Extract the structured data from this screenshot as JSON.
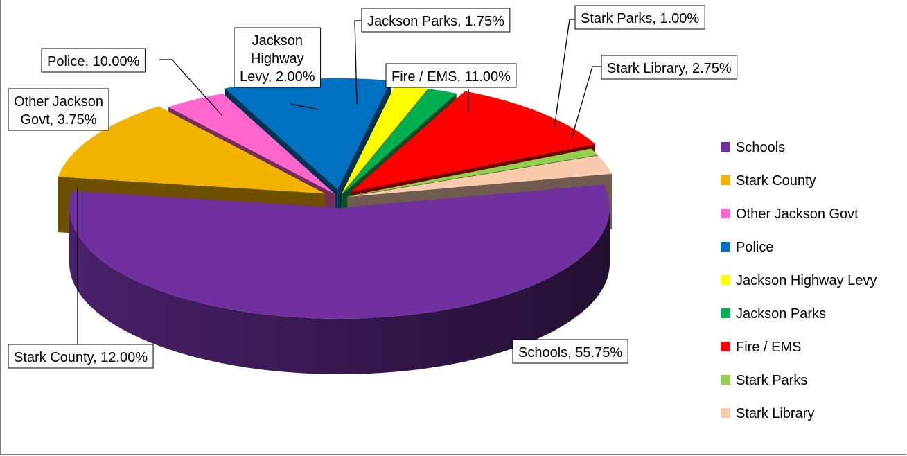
{
  "chart_data": {
    "type": "pie",
    "three_d": true,
    "exploded": true,
    "legend_position": "right",
    "slices": [
      {
        "name": "Schools",
        "value": 55.75,
        "label": "Schools, 55.75%",
        "color": "#7030A0"
      },
      {
        "name": "Stark County",
        "value": 12.0,
        "label": "Stark County, 12.00%",
        "color": "#F2B300"
      },
      {
        "name": "Other Jackson Govt",
        "value": 3.75,
        "label": "Other Jackson Govt, 3.75%",
        "label_lines": [
          "Other Jackson",
          "Govt, 3.75%"
        ],
        "color": "#FF66CC"
      },
      {
        "name": "Police",
        "value": 10.0,
        "label": "Police, 10.00%",
        "color": "#0070C0"
      },
      {
        "name": "Jackson Highway Levy",
        "value": 2.0,
        "label": "Jackson Highway Levy, 2.00%",
        "label_lines": [
          "Jackson",
          "Highway",
          "Levy, 2.00%"
        ],
        "color": "#FFFF00"
      },
      {
        "name": "Jackson Parks",
        "value": 1.75,
        "label": "Jackson Parks, 1.75%",
        "color": "#00B050"
      },
      {
        "name": "Fire / EMS",
        "value": 11.0,
        "label": "Fire / EMS, 11.00%",
        "color": "#FF0000"
      },
      {
        "name": "Stark Parks",
        "value": 1.0,
        "label": "Stark Parks, 1.00%",
        "color": "#92D050"
      },
      {
        "name": "Stark Library",
        "value": 2.75,
        "label": "Stark Library, 2.75%",
        "color": "#F8CBAD"
      }
    ]
  }
}
